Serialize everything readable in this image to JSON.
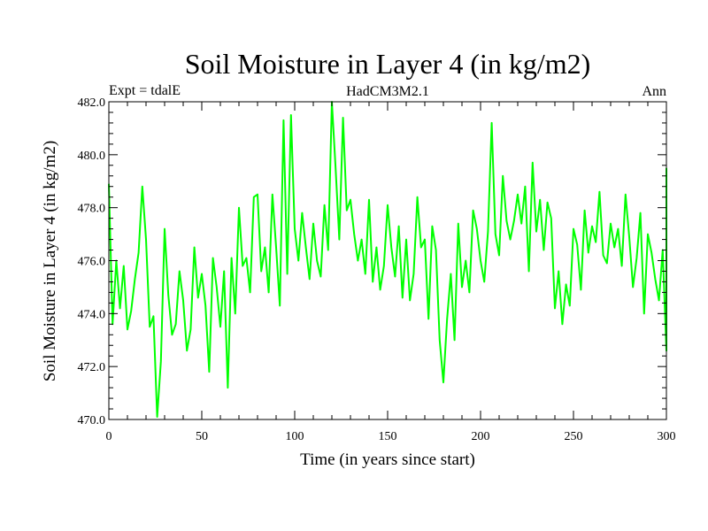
{
  "chart_data": {
    "type": "line",
    "title": "Soil Moisture in Layer 4 (in kg/m2)",
    "subtitle_left": "Expt = tdalE",
    "subtitle_center": "HadCM3M2.1",
    "subtitle_right": "Ann",
    "xlabel": "Time (in years since start)",
    "ylabel": "Soil Moisture in Layer 4 (in kg/m2)",
    "xlim": [
      0,
      300
    ],
    "ylim": [
      470,
      482
    ],
    "x_ticks": [
      0,
      50,
      100,
      150,
      200,
      250,
      300
    ],
    "y_ticks": [
      "470.0",
      "472.0",
      "474.0",
      "476.0",
      "478.0",
      "480.0",
      "482.0"
    ],
    "y_tick_values": [
      470,
      472,
      474,
      476,
      478,
      480,
      482
    ],
    "grid": false,
    "series": [
      {
        "name": "Soil Moisture Layer 4",
        "color": "#00ff00",
        "x_start": 0,
        "x_step": 2,
        "values": [
          478.9,
          473.6,
          476.0,
          474.2,
          475.8,
          473.4,
          474.1,
          475.3,
          476.3,
          478.8,
          476.8,
          473.5,
          473.9,
          470.1,
          472.2,
          477.2,
          474.7,
          473.2,
          473.6,
          475.6,
          474.5,
          472.6,
          473.4,
          476.5,
          474.6,
          475.5,
          474.3,
          471.8,
          476.1,
          475.0,
          473.5,
          475.6,
          471.2,
          476.1,
          474.0,
          478.0,
          475.8,
          476.1,
          474.8,
          478.4,
          478.5,
          475.6,
          476.5,
          474.8,
          478.5,
          476.5,
          474.3,
          481.3,
          475.5,
          481.5,
          477.2,
          476.0,
          477.8,
          476.5,
          475.3,
          477.4,
          476.0,
          475.4,
          478.1,
          476.4,
          482.0,
          479.5,
          476.8,
          481.4,
          477.9,
          478.3,
          477.0,
          476.0,
          476.8,
          475.5,
          478.3,
          475.2,
          476.5,
          474.9,
          475.8,
          478.1,
          476.5,
          475.4,
          477.3,
          474.6,
          476.8,
          474.5,
          475.5,
          478.4,
          476.5,
          476.8,
          473.8,
          477.3,
          476.4,
          473.0,
          471.4,
          473.8,
          475.5,
          473.0,
          477.4,
          475.0,
          476.0,
          474.8,
          477.9,
          477.2,
          476.0,
          475.2,
          477.1,
          481.2,
          477.0,
          476.2,
          479.2,
          477.5,
          476.8,
          477.5,
          478.5,
          477.4,
          478.8,
          475.6,
          479.7,
          477.1,
          478.3,
          476.4,
          478.2,
          477.6,
          474.2,
          475.6,
          473.6,
          475.1,
          474.3,
          477.2,
          476.6,
          474.9,
          477.9,
          476.3,
          477.3,
          476.7,
          478.6,
          476.2,
          475.9,
          477.4,
          476.5,
          477.2,
          475.8,
          478.5,
          476.9,
          475.0,
          476.1,
          477.8,
          474.0,
          477.0,
          476.3,
          475.3,
          474.5,
          476.4,
          472.6,
          479.5
        ]
      }
    ]
  }
}
